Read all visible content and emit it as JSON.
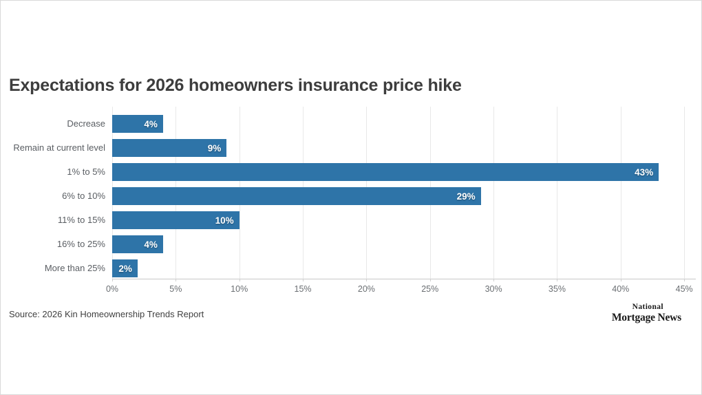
{
  "title": "Expectations for 2026 homeowners insurance price hike",
  "source": "Source: 2026 Kin Homeownership Trends Report",
  "logo": {
    "line1": "National",
    "line2": "Mortgage News"
  },
  "chart_data": {
    "type": "bar",
    "orientation": "horizontal",
    "title": "Expectations for 2026 homeowners insurance price hike",
    "categories": [
      "Decrease",
      "Remain at current level",
      "1% to 5%",
      "6% to 10%",
      "11% to 15%",
      "16% to 25%",
      "More than 25%"
    ],
    "values": [
      4,
      9,
      43,
      29,
      10,
      4,
      2
    ],
    "value_labels": [
      "4%",
      "9%",
      "43%",
      "29%",
      "10%",
      "4%",
      "2%"
    ],
    "xlabel": "",
    "ylabel": "",
    "xlim": [
      0,
      45
    ],
    "x_tick_step": 5,
    "x_tick_labels": [
      "0%",
      "5%",
      "10%",
      "15%",
      "20%",
      "25%",
      "30%",
      "35%",
      "40%",
      "45%"
    ],
    "grid": "vertical",
    "legend": "none",
    "bar_color": "#2e74a8",
    "value_label_color": "#ffffff",
    "gridline_color": "#e8e8e8"
  }
}
